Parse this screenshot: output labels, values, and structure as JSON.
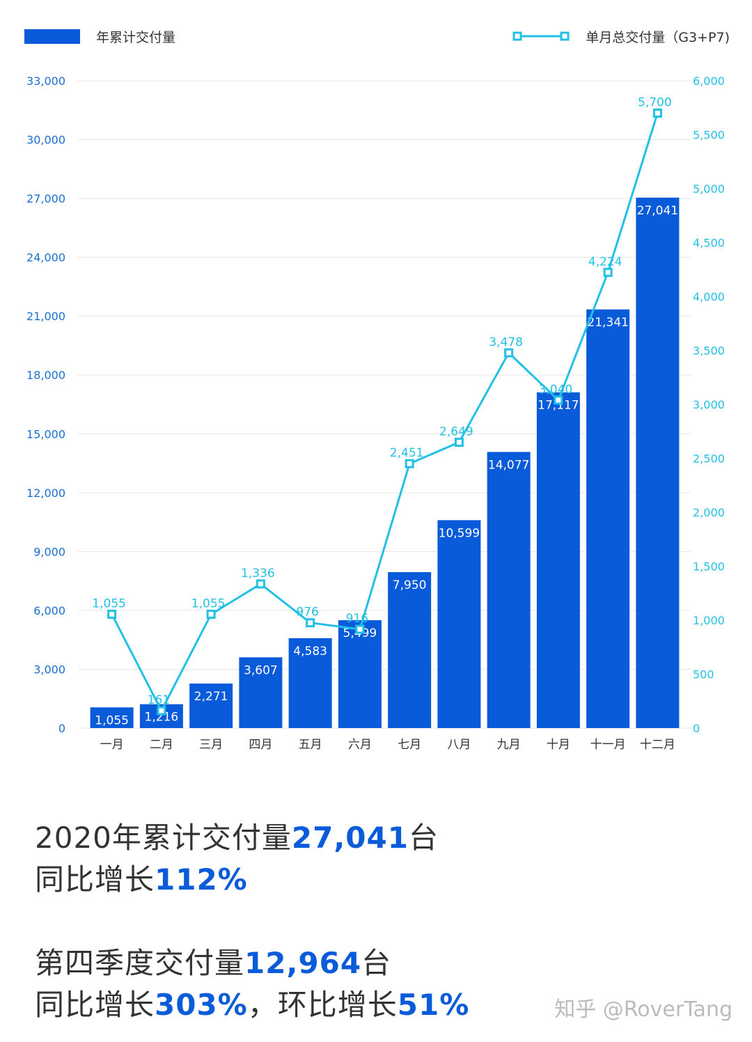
{
  "chart_data": {
    "type": "bar+line",
    "categories": [
      "一月",
      "二月",
      "三月",
      "四月",
      "五月",
      "六月",
      "七月",
      "八月",
      "九月",
      "十月",
      "十一月",
      "十二月"
    ],
    "series": [
      {
        "name": "年累计交付量",
        "type": "bar",
        "axis": "left",
        "color": "#0a5bd9",
        "values": [
          1055,
          1216,
          2271,
          3607,
          4583,
          5499,
          7950,
          10599,
          14077,
          17117,
          21341,
          27041
        ]
      },
      {
        "name": "单月总交付量（G3+P7)",
        "type": "line",
        "axis": "right",
        "color": "#22c0e6",
        "values": [
          1055,
          161,
          1055,
          1336,
          976,
          916,
          2451,
          2649,
          3478,
          3040,
          4224,
          5700
        ]
      }
    ],
    "left_axis": {
      "ylim": [
        0,
        33000
      ],
      "ticks": [
        "0",
        "3,000",
        "6,000",
        "9,000",
        "12,000",
        "15,000",
        "18,000",
        "21,000",
        "24,000",
        "27,000",
        "30,000",
        "33,000"
      ]
    },
    "right_axis": {
      "ylim": [
        0,
        6000
      ],
      "ticks": [
        "0",
        "500",
        "1,000",
        "1,500",
        "2,000",
        "2,500",
        "3,000",
        "3,500",
        "4,000",
        "4,500",
        "5,000",
        "5,500",
        "6,000"
      ]
    },
    "grid": true,
    "legend": "top"
  },
  "summary": [
    [
      {
        "t": "2020年累计交付量"
      },
      {
        "t": "27,041",
        "hl": true
      },
      {
        "t": "台"
      }
    ],
    [
      {
        "t": "同比增长"
      },
      {
        "t": "112%",
        "hl": true
      }
    ],
    [
      {
        "t": "第四季度交付量"
      },
      {
        "t": "12,964",
        "hl": true
      },
      {
        "t": "台"
      }
    ],
    [
      {
        "t": "同比增长"
      },
      {
        "t": "303%",
        "hl": true
      },
      {
        "t": "，环比增长"
      },
      {
        "t": "51%",
        "hl": true
      }
    ]
  ],
  "watermark": "知乎 @RoverTang"
}
